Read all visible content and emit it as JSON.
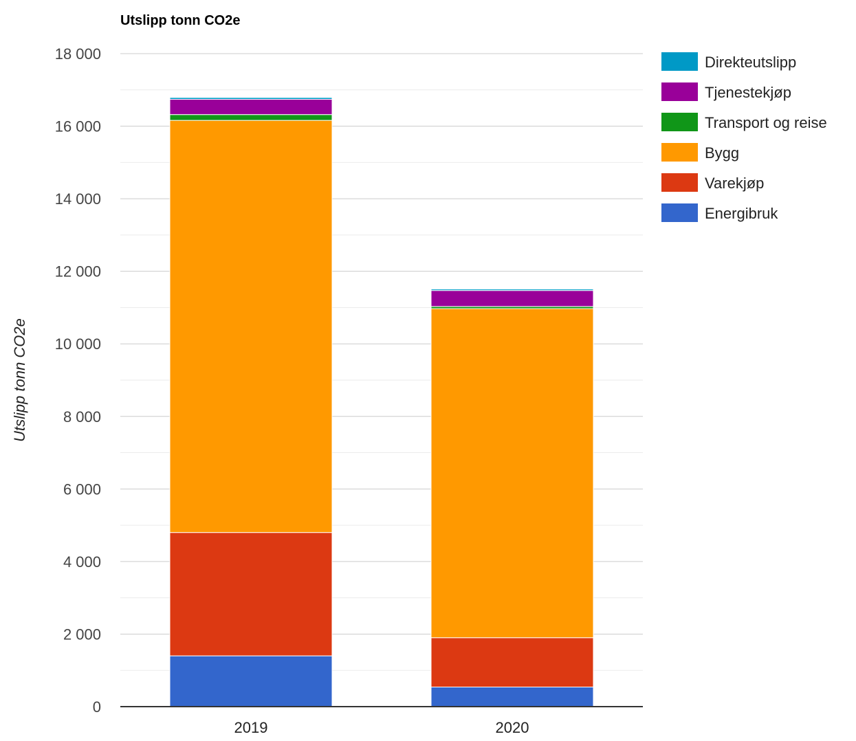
{
  "chart_data": {
    "type": "bar",
    "stacked": true,
    "title": "Utslipp tonn CO2e",
    "xlabel": "",
    "ylabel": "Utslipp tonn CO2e",
    "ylim": [
      0,
      18000
    ],
    "y_ticks": [
      {
        "value": 0,
        "label": "0"
      },
      {
        "value": 2000,
        "label": "2 000"
      },
      {
        "value": 4000,
        "label": "4 000"
      },
      {
        "value": 6000,
        "label": "6 000"
      },
      {
        "value": 8000,
        "label": "8 000"
      },
      {
        "value": 10000,
        "label": "10 000"
      },
      {
        "value": 12000,
        "label": "12 000"
      },
      {
        "value": 14000,
        "label": "14 000"
      },
      {
        "value": 16000,
        "label": "16 000"
      },
      {
        "value": 18000,
        "label": "18 000"
      }
    ],
    "grid": true,
    "legend_position": "right",
    "categories": [
      "2019",
      "2020"
    ],
    "series": [
      {
        "name": "Energibruk",
        "color": "#3366cc",
        "values": [
          1400,
          540
        ]
      },
      {
        "name": "Varekjøp",
        "color": "#dc3912",
        "values": [
          3400,
          1360
        ]
      },
      {
        "name": "Bygg",
        "color": "#ff9900",
        "values": [
          11360,
          9070
        ]
      },
      {
        "name": "Transport og reise",
        "color": "#109618",
        "values": [
          160,
          60
        ]
      },
      {
        "name": "Tjenestekjøp",
        "color": "#990099",
        "values": [
          420,
          440
        ]
      },
      {
        "name": "Direkteutslipp",
        "color": "#0099c6",
        "values": [
          50,
          40
        ]
      }
    ],
    "legend_order": [
      "Direkteutslipp",
      "Tjenestekjøp",
      "Transport og reise",
      "Bygg",
      "Varekjøp",
      "Energibruk"
    ]
  }
}
